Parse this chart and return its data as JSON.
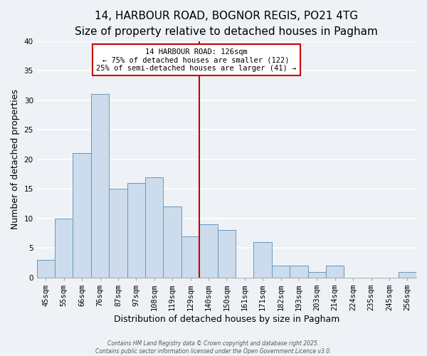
{
  "title": "14, HARBOUR ROAD, BOGNOR REGIS, PO21 4TG",
  "subtitle": "Size of property relative to detached houses in Pagham",
  "xlabel": "Distribution of detached houses by size in Pagham",
  "ylabel": "Number of detached properties",
  "categories": [
    "45sqm",
    "55sqm",
    "66sqm",
    "76sqm",
    "87sqm",
    "97sqm",
    "108sqm",
    "119sqm",
    "129sqm",
    "140sqm",
    "150sqm",
    "161sqm",
    "171sqm",
    "182sqm",
    "193sqm",
    "203sqm",
    "214sqm",
    "224sqm",
    "235sqm",
    "245sqm",
    "256sqm"
  ],
  "values": [
    3,
    10,
    21,
    31,
    15,
    16,
    17,
    12,
    7,
    9,
    8,
    0,
    6,
    2,
    2,
    1,
    2,
    0,
    0,
    0,
    1
  ],
  "bar_color": "#ccdcec",
  "bar_edge_color": "#6699bb",
  "vline_x": 8.5,
  "vline_color": "#cc0000",
  "annotation_title": "14 HARBOUR ROAD: 126sqm",
  "annotation_line1": "← 75% of detached houses are smaller (122)",
  "annotation_line2": "25% of semi-detached houses are larger (41) →",
  "annotation_box_color": "#ffffff",
  "annotation_box_edge_color": "#cc0000",
  "ylim": [
    0,
    40
  ],
  "yticks": [
    0,
    5,
    10,
    15,
    20,
    25,
    30,
    35,
    40
  ],
  "footnote1": "Contains HM Land Registry data © Crown copyright and database right 2025.",
  "footnote2": "Contains public sector information licensed under the Open Government Licence v3.0.",
  "background_color": "#eef2f7",
  "grid_color": "#ffffff",
  "title_fontsize": 11,
  "subtitle_fontsize": 9.5,
  "axis_label_fontsize": 9,
  "tick_fontsize": 7.5,
  "footnote_fontsize": 5.5
}
